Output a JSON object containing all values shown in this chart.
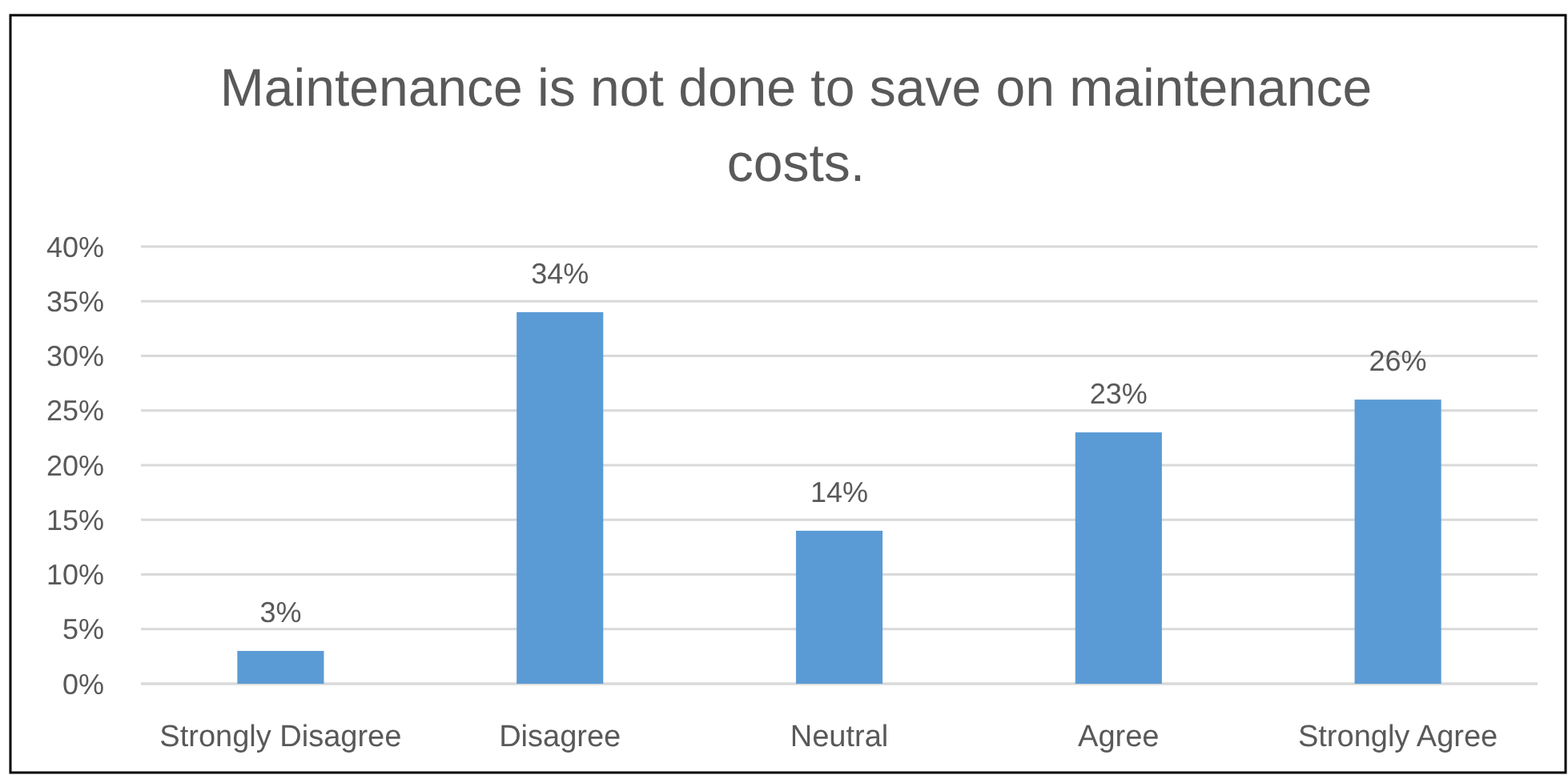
{
  "chart_data": {
    "type": "bar",
    "title": "Maintenance is not done to save on maintenance costs.",
    "categories": [
      "Strongly Disagree",
      "Disagree",
      "Neutral",
      "Agree",
      "Strongly Agree"
    ],
    "values": [
      3,
      34,
      14,
      23,
      26
    ],
    "value_labels": [
      "3%",
      "34%",
      "14%",
      "23%",
      "26%"
    ],
    "color": "#5b9bd5",
    "ylim": [
      0,
      40
    ],
    "yticks": [
      {
        "value": 0,
        "label": "0%"
      },
      {
        "value": 5,
        "label": "5%"
      },
      {
        "value": 10,
        "label": "10%"
      },
      {
        "value": 15,
        "label": "15%"
      },
      {
        "value": 20,
        "label": "20%"
      },
      {
        "value": 25,
        "label": "25%"
      },
      {
        "value": 30,
        "label": "30%"
      },
      {
        "value": 35,
        "label": "35%"
      },
      {
        "value": 40,
        "label": "40%"
      }
    ],
    "grid": "y"
  }
}
